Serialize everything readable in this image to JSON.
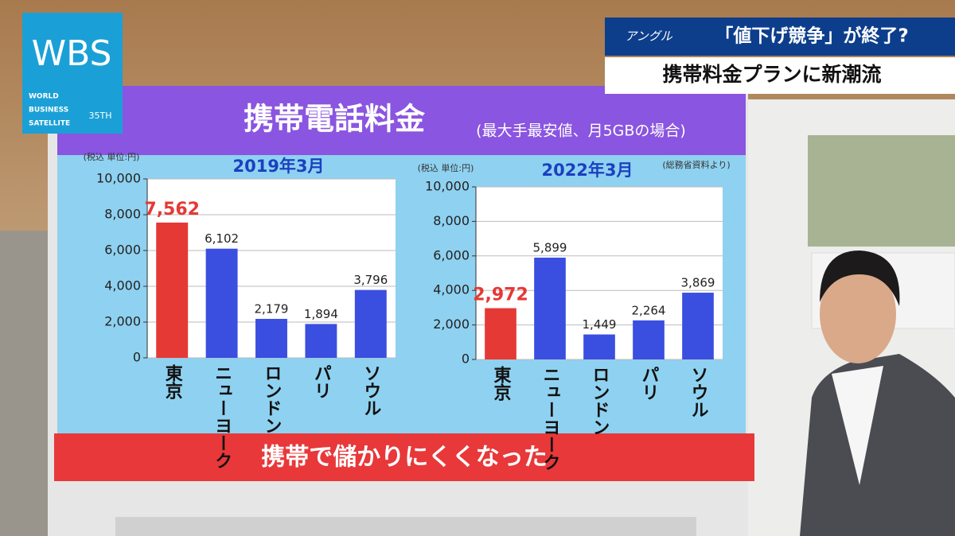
{
  "logo": {
    "letters": "WBS",
    "lines": [
      "WORLD",
      "BUSINESS",
      "SATELLITE"
    ],
    "anniversary": "35TH"
  },
  "headline": {
    "corner": "アングル",
    "line1": "「値下げ競争」が終了?",
    "line2": "携帯料金プランに新潮流"
  },
  "board": {
    "title": "携帯電話料金",
    "subtitle": "(最大手最安値、月5GBの場合)",
    "banner": "携帯で儲かりにくくなった"
  },
  "chart_data": [
    {
      "type": "bar",
      "title": "2019年3月",
      "unit": "(税込 単位:円)",
      "categories": [
        "東京",
        "ニューヨーク",
        "ロンドン",
        "パリ",
        "ソウル"
      ],
      "values": [
        7562,
        6102,
        2179,
        1894,
        3796
      ],
      "value_labels": [
        "7,562",
        "6,102",
        "2,179",
        "1,894",
        "3,796"
      ],
      "colors": [
        "#e53935",
        "#3a4fe0",
        "#3a4fe0",
        "#3a4fe0",
        "#3a4fe0"
      ],
      "ylim": [
        0,
        10000
      ],
      "yticks": [
        0,
        {
          "value": 2000,
          "label": "2,000"
        },
        {
          "value": 4000,
          "label": "4,000"
        },
        {
          "value": 6000,
          "label": "6,000"
        },
        {
          "value": 8000,
          "label": "8,000"
        },
        {
          "value": 10000,
          "label": "10,000"
        }
      ],
      "grid": true
    },
    {
      "type": "bar",
      "title": "2022年3月",
      "unit": "(税込 単位:円)",
      "source": "(総務省資料より)",
      "categories": [
        "東京",
        "ニューヨーク",
        "ロンドン",
        "パリ",
        "ソウル"
      ],
      "values": [
        2972,
        5899,
        1449,
        2264,
        3869
      ],
      "value_labels": [
        "2,972",
        "5,899",
        "1,449",
        "2,264",
        "3,869"
      ],
      "colors": [
        "#e53935",
        "#3a4fe0",
        "#3a4fe0",
        "#3a4fe0",
        "#3a4fe0"
      ],
      "ylim": [
        0,
        10000
      ],
      "yticks": [
        0,
        {
          "value": 2000,
          "label": "2,000"
        },
        {
          "value": 4000,
          "label": "4,000"
        },
        {
          "value": 6000,
          "label": "6,000"
        },
        {
          "value": 8000,
          "label": "8,000"
        },
        {
          "value": 10000,
          "label": "10,000"
        }
      ],
      "grid": true
    }
  ]
}
